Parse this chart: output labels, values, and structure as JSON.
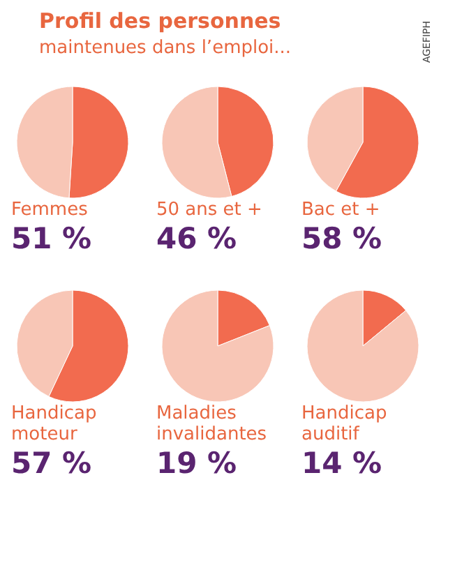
{
  "chart_data": [
    {
      "type": "pie",
      "title": "Femmes",
      "subtitle": "51 %",
      "annotations": [
        "Profil des personnes",
        "maintenues dans l’emploi...",
        "AGEFIPH"
      ],
      "categories": [
        null,
        null
      ],
      "values": [
        51,
        49
      ],
      "colors": [
        "#f26b4f",
        "#f8c6b6"
      ]
    },
    {
      "type": "pie",
      "title": "50 ans et +",
      "subtitle": "46 %",
      "categories": [
        null,
        null
      ],
      "values": [
        46,
        54
      ],
      "colors": [
        "#f26b4f",
        "#f8c6b6"
      ]
    },
    {
      "type": "pie",
      "title": "Bac et +",
      "subtitle": "58 %",
      "categories": [
        null,
        null
      ],
      "values": [
        58,
        42
      ],
      "colors": [
        "#f26b4f",
        "#f8c6b6"
      ]
    },
    {
      "type": "pie",
      "title": "Handicap moteur",
      "subtitle": "57 %",
      "categories": [
        null,
        null
      ],
      "values": [
        57,
        43
      ],
      "colors": [
        "#f26b4f",
        "#f8c6b6"
      ]
    },
    {
      "type": "pie",
      "title": "Maladies invalidantes",
      "subtitle": "19 %",
      "categories": [
        null,
        null
      ],
      "values": [
        19,
        81
      ],
      "colors": [
        "#f26b4f",
        "#f8c6b6"
      ]
    },
    {
      "type": "pie",
      "title": "Handicap auditif",
      "subtitle": "14 %",
      "categories": [
        null,
        null
      ],
      "values": [
        14,
        86
      ],
      "colors": [
        "#f26b4f",
        "#f8c6b6"
      ]
    }
  ]
}
